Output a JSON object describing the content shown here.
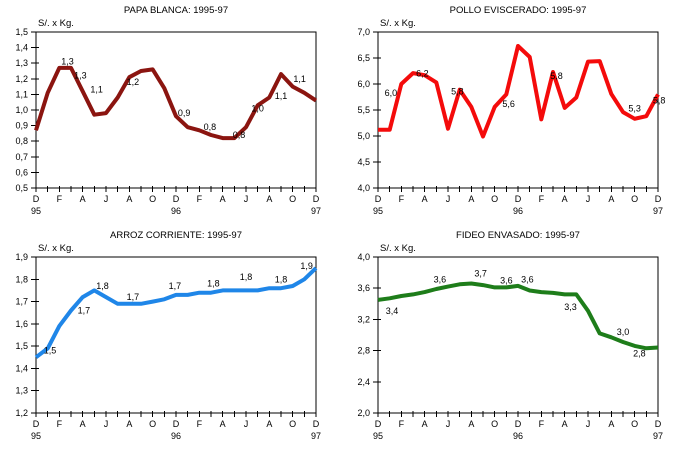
{
  "page": {
    "background_color": "#ffffff",
    "axis_color": "#000000",
    "text_color": "#000000"
  },
  "chart_data": [
    {
      "id": "papa-blanca",
      "type": "line",
      "title": "PAPA BLANCA: 1995-97",
      "ylabel": "S/. x Kg.",
      "line_color": "#8b1510",
      "ylim": [
        0.5,
        1.5
      ],
      "grid": false,
      "x_start": "Dec-95",
      "x_end": "Dec-97",
      "yticks": [
        {
          "label": "1,5",
          "value": 1.5
        },
        {
          "label": "1,4",
          "value": 1.4
        },
        {
          "label": "1,3",
          "value": 1.3
        },
        {
          "label": "1,2",
          "value": 1.2
        },
        {
          "label": "1,1",
          "value": 1.1
        },
        {
          "label": "1,0",
          "value": 1.0
        },
        {
          "label": "0,9",
          "value": 0.9
        },
        {
          "label": "0,8",
          "value": 0.8
        },
        {
          "label": "0,7",
          "value": 0.7
        },
        {
          "label": "0,6",
          "value": 0.6
        },
        {
          "label": "0,5",
          "value": 0.5
        }
      ],
      "xtick_labels": [
        "D",
        "F",
        "A",
        "J",
        "A",
        "O",
        "D",
        "F",
        "A",
        "J",
        "A",
        "O",
        "D"
      ],
      "year_ticks": [
        {
          "label": "95",
          "month_index": 0
        },
        {
          "label": "96",
          "month_index": 12
        },
        {
          "label": "97",
          "month_index": 24
        }
      ],
      "values": [
        0.87,
        1.11,
        1.27,
        1.27,
        1.12,
        0.97,
        0.98,
        1.08,
        1.21,
        1.25,
        1.26,
        1.14,
        0.96,
        0.89,
        0.87,
        0.84,
        0.82,
        0.82,
        0.89,
        1.03,
        1.08,
        1.23,
        1.15,
        1.11,
        1.06
      ],
      "point_labels": [
        {
          "text": "1,3",
          "month_index": 2.7,
          "value": 1.31
        },
        {
          "text": "1,3",
          "month_index": 3.8,
          "value": 1.22
        },
        {
          "text": "1,1",
          "month_index": 5.2,
          "value": 1.13
        },
        {
          "text": "1,2",
          "month_index": 8.3,
          "value": 1.18
        },
        {
          "text": "0,9",
          "month_index": 12.7,
          "value": 0.98
        },
        {
          "text": "0,8",
          "month_index": 14.9,
          "value": 0.89
        },
        {
          "text": "0,8",
          "month_index": 17.4,
          "value": 0.84
        },
        {
          "text": "1,0",
          "month_index": 19.0,
          "value": 1.01
        },
        {
          "text": "1,1",
          "month_index": 21.0,
          "value": 1.09
        },
        {
          "text": "1,1",
          "month_index": 22.6,
          "value": 1.2
        }
      ]
    },
    {
      "id": "pollo-eviscerado",
      "type": "line",
      "title": "POLLO EVISCERADO: 1995-97",
      "ylabel": "S/. x Kg.",
      "line_color": "#f40b0b",
      "ylim": [
        4.0,
        7.0
      ],
      "grid": false,
      "x_start": "Dec-95",
      "x_end": "Dec-97",
      "yticks": [
        {
          "label": "7,0",
          "value": 7.0
        },
        {
          "label": "6,5",
          "value": 6.5
        },
        {
          "label": "6,0",
          "value": 6.0
        },
        {
          "label": "5,5",
          "value": 5.5
        },
        {
          "label": "5,0",
          "value": 5.0
        },
        {
          "label": "4,5",
          "value": 4.5
        },
        {
          "label": "4,0",
          "value": 4.0
        }
      ],
      "xtick_labels": [
        "D",
        "F",
        "A",
        "J",
        "A",
        "O",
        "D",
        "F",
        "A",
        "J",
        "A",
        "O",
        "D"
      ],
      "year_ticks": [
        {
          "label": "95",
          "month_index": 0
        },
        {
          "label": "96",
          "month_index": 12
        },
        {
          "label": "97",
          "month_index": 24
        }
      ],
      "values": [
        5.12,
        5.12,
        6.0,
        6.21,
        6.17,
        6.03,
        5.14,
        5.89,
        5.56,
        4.99,
        5.56,
        5.8,
        6.73,
        6.52,
        5.32,
        6.23,
        5.54,
        5.74,
        6.43,
        6.44,
        5.81,
        5.46,
        5.33,
        5.38,
        5.8
      ],
      "point_labels": [
        {
          "text": "6,0",
          "month_index": 1.1,
          "value": 5.83
        },
        {
          "text": "6,2",
          "month_index": 3.8,
          "value": 6.2
        },
        {
          "text": "5,8",
          "month_index": 6.8,
          "value": 5.86
        },
        {
          "text": "5,6",
          "month_index": 11.2,
          "value": 5.62
        },
        {
          "text": "5,8",
          "month_index": 15.3,
          "value": 6.15
        },
        {
          "text": "5,3",
          "month_index": 22.0,
          "value": 5.53
        },
        {
          "text": "5,8",
          "month_index": 24.1,
          "value": 5.68
        }
      ]
    },
    {
      "id": "arroz-corriente",
      "type": "line",
      "title": "ARROZ CORRIENTE: 1995-97",
      "ylabel": "S/. x Kg.",
      "line_color": "#1f86e8",
      "ylim": [
        1.2,
        1.9
      ],
      "grid": false,
      "x_start": "Dec-95",
      "x_end": "Dec-97",
      "yticks": [
        {
          "label": "1,9",
          "value": 1.9
        },
        {
          "label": "1,8",
          "value": 1.8
        },
        {
          "label": "1,7",
          "value": 1.7
        },
        {
          "label": "1,6",
          "value": 1.6
        },
        {
          "label": "1,5",
          "value": 1.5
        },
        {
          "label": "1,4",
          "value": 1.4
        },
        {
          "label": "1,3",
          "value": 1.3
        },
        {
          "label": "1,2",
          "value": 1.2
        }
      ],
      "xtick_labels": [
        "D",
        "F",
        "A",
        "J",
        "A",
        "O",
        "D",
        "F",
        "A",
        "J",
        "A",
        "O",
        "D"
      ],
      "year_ticks": [
        {
          "label": "95",
          "month_index": 0
        },
        {
          "label": "96",
          "month_index": 12
        },
        {
          "label": "97",
          "month_index": 24
        }
      ],
      "values": [
        1.45,
        1.49,
        1.59,
        1.66,
        1.72,
        1.75,
        1.72,
        1.69,
        1.69,
        1.69,
        1.7,
        1.71,
        1.73,
        1.73,
        1.74,
        1.74,
        1.75,
        1.75,
        1.75,
        1.75,
        1.76,
        1.76,
        1.77,
        1.8,
        1.85
      ],
      "point_labels": [
        {
          "text": "1,5",
          "month_index": 1.2,
          "value": 1.48
        },
        {
          "text": "1,7",
          "month_index": 4.1,
          "value": 1.66
        },
        {
          "text": "1,8",
          "month_index": 5.7,
          "value": 1.77
        },
        {
          "text": "1,7",
          "month_index": 8.3,
          "value": 1.72
        },
        {
          "text": "1,7",
          "month_index": 11.9,
          "value": 1.77
        },
        {
          "text": "1,8",
          "month_index": 15.2,
          "value": 1.78
        },
        {
          "text": "1,8",
          "month_index": 18.0,
          "value": 1.81
        },
        {
          "text": "1,8",
          "month_index": 21.0,
          "value": 1.8
        },
        {
          "text": "1,9",
          "month_index": 23.2,
          "value": 1.86
        }
      ]
    },
    {
      "id": "fideo-envasado",
      "type": "line",
      "title": "FIDEO ENVASADO: 1995-97",
      "ylabel": "S/. x Kg.",
      "line_color": "#1e7d1a",
      "ylim": [
        2.0,
        4.0
      ],
      "grid": false,
      "x_start": "Dec-95",
      "x_end": "Dec-97",
      "yticks": [
        {
          "label": "4,0",
          "value": 4.0
        },
        {
          "label": "3,6",
          "value": 3.6
        },
        {
          "label": "3,2",
          "value": 3.2
        },
        {
          "label": "2,8",
          "value": 2.8
        },
        {
          "label": "2,4",
          "value": 2.4
        },
        {
          "label": "2,0",
          "value": 2.0
        }
      ],
      "xtick_labels": [
        "D",
        "F",
        "A",
        "J",
        "A",
        "O",
        "D",
        "F",
        "A",
        "J",
        "A",
        "O",
        "D"
      ],
      "year_ticks": [
        {
          "label": "95",
          "month_index": 0
        },
        {
          "label": "96",
          "month_index": 12
        },
        {
          "label": "97",
          "month_index": 24
        }
      ],
      "values": [
        3.45,
        3.47,
        3.5,
        3.52,
        3.55,
        3.59,
        3.62,
        3.65,
        3.66,
        3.64,
        3.61,
        3.61,
        3.63,
        3.57,
        3.55,
        3.54,
        3.52,
        3.52,
        3.31,
        3.02,
        2.97,
        2.91,
        2.86,
        2.83,
        2.84
      ],
      "point_labels": [
        {
          "text": "3,4",
          "month_index": 1.2,
          "value": 3.31
        },
        {
          "text": "3,6",
          "month_index": 5.3,
          "value": 3.71
        },
        {
          "text": "3,7",
          "month_index": 8.8,
          "value": 3.79
        },
        {
          "text": "3,6",
          "month_index": 11.0,
          "value": 3.7
        },
        {
          "text": "3,6",
          "month_index": 12.8,
          "value": 3.71
        },
        {
          "text": "3,3",
          "month_index": 16.5,
          "value": 3.36
        },
        {
          "text": "3,0",
          "month_index": 21.0,
          "value": 3.04
        },
        {
          "text": "2,8",
          "month_index": 22.4,
          "value": 2.76
        }
      ]
    }
  ]
}
